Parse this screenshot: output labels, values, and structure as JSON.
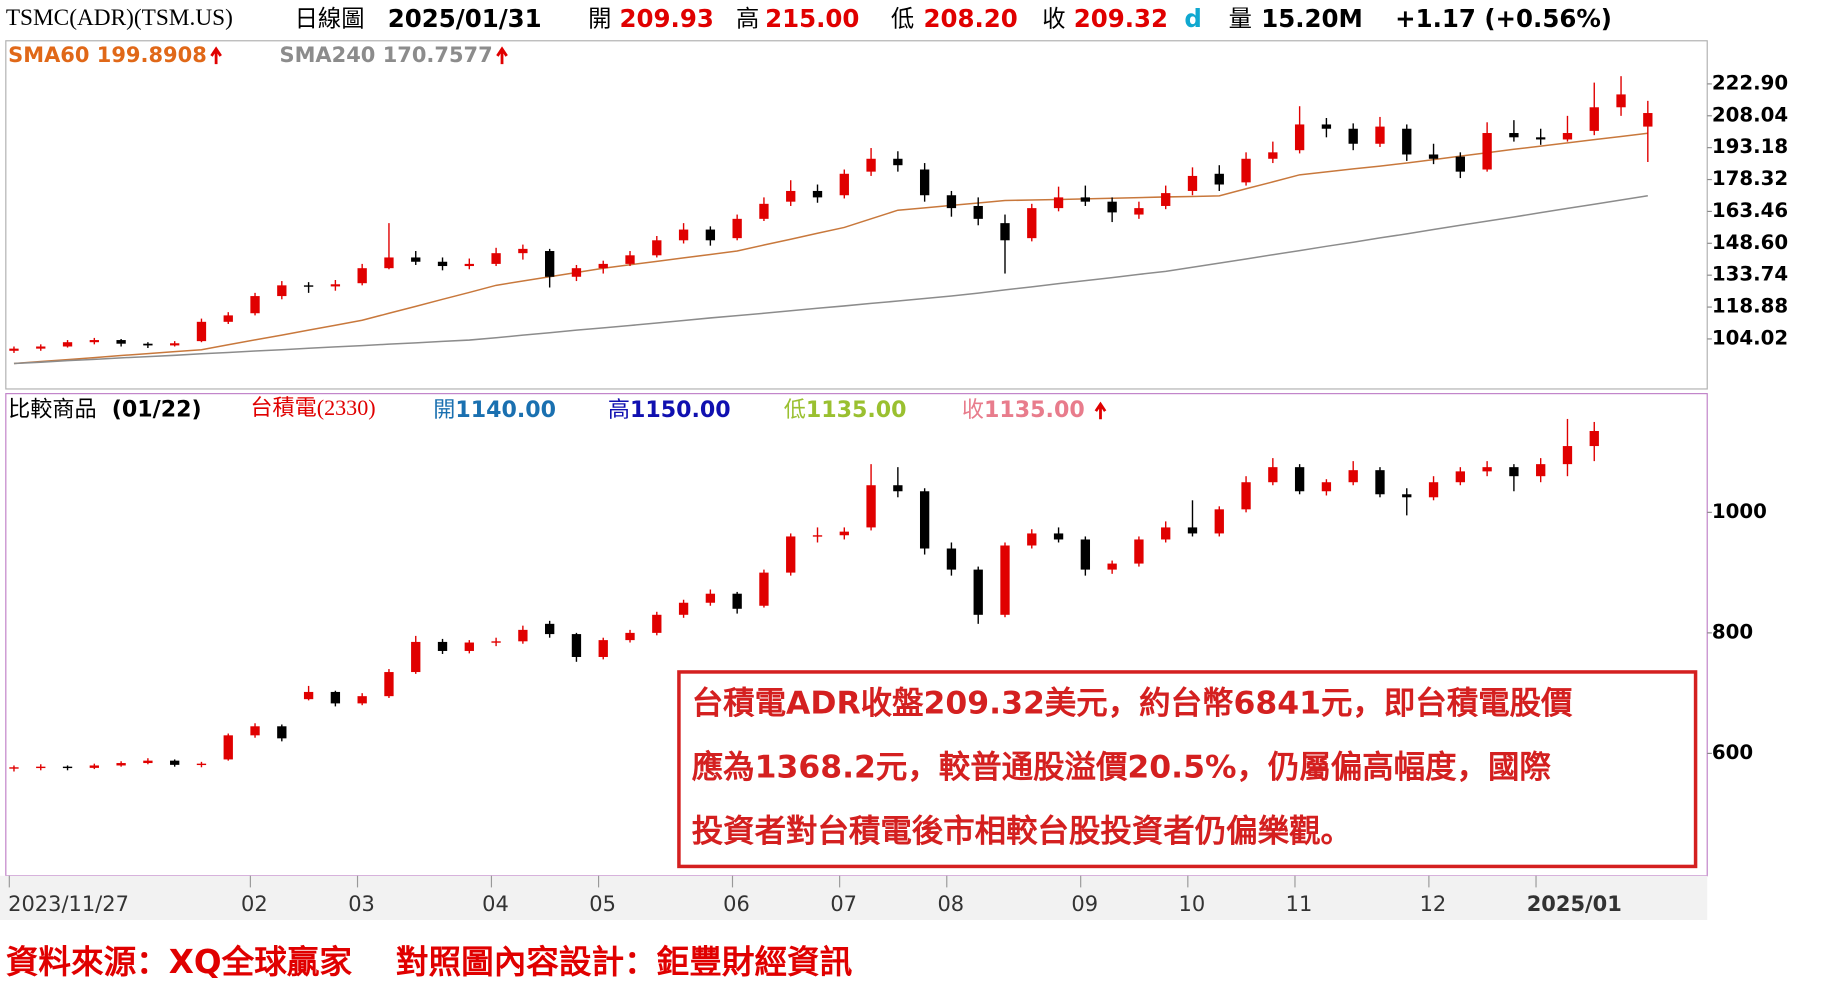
{
  "chart_data": [
    {
      "type": "candlestick",
      "quote": {
        "symbol": "TSMC(ADR)(TSM.US)",
        "period": "日線圖",
        "date": "2025/01/31",
        "open_label": "開",
        "open": "209.93",
        "high_label": "高",
        "high": "215.00",
        "low_label": "低",
        "low": "208.20",
        "close_label": "收",
        "close": "209.32",
        "flag": "d",
        "volume_label": "量",
        "volume": "15.20M",
        "change": "+1.17 (+0.56%)"
      },
      "up_color": "#e00000",
      "down_color": "#000000",
      "open": [
        98.5,
        99.5,
        100.5,
        102.5,
        103.5,
        101.8,
        101.0,
        103.0,
        112.0,
        116.0,
        124.0,
        129.0,
        128.5,
        130.0,
        137.0,
        142.0,
        140.0,
        138.0,
        139.0,
        144.0,
        145.0,
        133.0,
        137.0,
        139.0,
        143.0,
        150.0,
        155.0,
        151.0,
        160.0,
        168.0,
        173.0,
        171.0,
        182.0,
        188.0,
        183.0,
        171.0,
        166.0,
        158.0,
        151.0,
        165.0,
        170.0,
        168.0,
        162.0,
        166.0,
        173.0,
        181.0,
        177.0,
        188.0,
        192.0,
        204.0,
        202.0,
        195.0,
        202.0,
        190.0,
        189.0,
        183.0,
        200.0,
        198.0,
        197.0,
        201.0,
        212.0,
        203.0
      ],
      "high": [
        100.5,
        101.5,
        103.5,
        104.5,
        104.0,
        102.5,
        103.0,
        113.5,
        116.5,
        125.5,
        131.0,
        130.5,
        131.5,
        139.0,
        158.0,
        145.0,
        142.0,
        141.5,
        146.5,
        148.0,
        146.0,
        138.5,
        140.5,
        145.0,
        152.0,
        158.0,
        156.5,
        162.0,
        170.0,
        178.0,
        176.0,
        183.0,
        193.0,
        191.5,
        186.0,
        173.0,
        170.0,
        162.0,
        167.0,
        175.0,
        175.5,
        170.0,
        168.0,
        175.5,
        184.0,
        185.0,
        191.0,
        196.0,
        212.5,
        207.0,
        204.5,
        207.5,
        204.0,
        195.0,
        191.0,
        205.0,
        206.0,
        202.0,
        208.0,
        223.5,
        226.5,
        215.0
      ],
      "low": [
        97.5,
        98.5,
        100.0,
        101.5,
        100.5,
        99.8,
        100.5,
        102.5,
        111.0,
        115.0,
        122.5,
        125.5,
        126.5,
        129.0,
        136.5,
        138.5,
        136.0,
        136.5,
        138.0,
        141.0,
        128.0,
        131.0,
        134.5,
        138.0,
        142.0,
        148.5,
        147.5,
        150.0,
        159.0,
        166.0,
        167.5,
        169.5,
        180.0,
        182.0,
        168.0,
        161.0,
        157.0,
        134.5,
        149.5,
        163.5,
        166.0,
        158.5,
        160.0,
        164.5,
        171.0,
        173.0,
        175.5,
        186.0,
        190.5,
        198.0,
        192.0,
        193.5,
        187.0,
        185.5,
        179.0,
        182.0,
        196.0,
        194.5,
        196.0,
        199.0,
        208.0,
        186.5
      ],
      "close": [
        99.5,
        100.5,
        102.5,
        103.5,
        101.8,
        101.0,
        102.0,
        112.0,
        115.0,
        124.0,
        129.0,
        128.5,
        129.5,
        137.0,
        142.0,
        140.0,
        138.0,
        139.0,
        144.0,
        146.0,
        133.0,
        137.0,
        139.0,
        143.0,
        150.0,
        155.0,
        150.0,
        160.0,
        167.0,
        173.0,
        170.0,
        181.0,
        188.0,
        185.0,
        171.0,
        165.0,
        160.0,
        150.0,
        165.0,
        170.0,
        168.0,
        163.0,
        165.0,
        172.0,
        180.0,
        176.0,
        188.0,
        191.0,
        204.0,
        202.0,
        195.0,
        203.0,
        190.0,
        188.0,
        182.0,
        200.0,
        198.0,
        197.0,
        200.0,
        212.0,
        218.0,
        209.32
      ],
      "lines": [
        {
          "name": "SMA60",
          "color": "#c8783c",
          "label_color": "#e06818",
          "values": [
            92.6,
            93.5,
            94.4,
            95.3,
            96.3,
            97.2,
            98.1,
            99.0,
            101.3,
            103.6,
            105.8,
            108.1,
            110.4,
            112.7,
            116.0,
            119.2,
            122.5,
            125.7,
            129.0,
            131.0,
            133.0,
            135.0,
            137.0,
            138.6,
            140.2,
            141.8,
            143.4,
            145.0,
            147.8,
            150.5,
            153.3,
            156.0,
            160.0,
            164.0,
            165.1,
            166.3,
            167.4,
            168.5,
            168.8,
            169.0,
            169.3,
            169.6,
            169.9,
            170.2,
            170.4,
            170.7,
            174.0,
            177.2,
            180.5,
            181.9,
            183.3,
            184.6,
            186.0,
            187.6,
            189.2,
            190.8,
            192.4,
            193.9,
            195.4,
            196.9,
            198.4,
            199.8908
          ]
        },
        {
          "name": "SMA240",
          "color": "#8c8c8c",
          "label_color": "#8c8c8c",
          "values": [
            92.6,
            93.2,
            93.9,
            94.5,
            95.2,
            95.8,
            96.4,
            97.1,
            97.7,
            98.4,
            99.0,
            99.7,
            100.3,
            100.9,
            101.6,
            102.2,
            102.9,
            103.5,
            104.6,
            105.8,
            106.9,
            108.1,
            109.2,
            110.3,
            111.5,
            112.6,
            113.8,
            114.9,
            116.0,
            117.2,
            118.3,
            119.4,
            120.6,
            121.7,
            122.9,
            124.0,
            125.4,
            126.9,
            128.3,
            129.8,
            131.2,
            132.6,
            134.1,
            135.5,
            137.4,
            139.4,
            141.3,
            143.3,
            145.2,
            147.2,
            149.1,
            151.1,
            153.0,
            155.0,
            157.0,
            158.9,
            160.9,
            162.9,
            164.9,
            166.8,
            168.8,
            170.7577
          ]
        }
      ],
      "ylim": [
        80.7,
        243.0
      ],
      "yticks": [
        104.02,
        118.88,
        133.74,
        {
          "value": 148.6,
          "label": "148.60"
        },
        163.46,
        178.32,
        193.18,
        208.04,
        {
          "value": 222.9,
          "label": "222.90"
        }
      ]
    },
    {
      "type": "candlestick",
      "quote": {
        "title": "比較商品",
        "date": "(01/22)",
        "name": "台積電(2330)",
        "open_label": "開",
        "open": "1140.00",
        "open_color": "#1a70b0",
        "high_label": "高",
        "high": "1150.00",
        "high_color": "#1010b0",
        "low_label": "低",
        "low": "1135.00",
        "low_color": "#9ac030",
        "close_label": "收",
        "close": "1135.00",
        "close_color": "#e87c8c"
      },
      "up_color": "#e00000",
      "down_color": "#000000",
      "categories": [
        "2023/11/27",
        null,
        null,
        null,
        null,
        null,
        null,
        null,
        null,
        "02",
        null,
        null,
        null,
        "03",
        null,
        null,
        null,
        null,
        "04",
        null,
        null,
        null,
        "05",
        null,
        null,
        null,
        null,
        "06",
        null,
        null,
        null,
        "07",
        null,
        null,
        null,
        "08",
        null,
        null,
        null,
        null,
        "09",
        null,
        null,
        null,
        "10",
        null,
        null,
        null,
        "11",
        null,
        null,
        null,
        null,
        "12",
        null,
        null,
        null,
        "2025/01",
        null,
        null,
        null,
        null
      ],
      "open": [
        575,
        577,
        578,
        576,
        580,
        584,
        588,
        581,
        590,
        630,
        645,
        690,
        702,
        683,
        695,
        735,
        785,
        770,
        784,
        786,
        815,
        798,
        760,
        788,
        800,
        830,
        850,
        865,
        845,
        900,
        960,
        962,
        975,
        1045,
        1035,
        940,
        905,
        830,
        945,
        965,
        955,
        905,
        915,
        955,
        975,
        965,
        1005,
        1050,
        1075,
        1035,
        1050,
        1070,
        1030,
        1025,
        1050,
        1068,
        1075,
        1060,
        1080,
        1110,
        null,
        null
      ],
      "high": [
        580,
        582,
        580,
        583,
        587,
        592,
        590,
        586,
        633,
        650,
        648,
        712,
        704,
        700,
        740,
        795,
        790,
        788,
        792,
        812,
        820,
        800,
        792,
        805,
        835,
        855,
        872,
        868,
        905,
        965,
        975,
        975,
        1080,
        1075,
        1040,
        950,
        910,
        950,
        972,
        975,
        960,
        920,
        960,
        985,
        1020,
        1010,
        1060,
        1090,
        1080,
        1055,
        1085,
        1075,
        1040,
        1060,
        1075,
        1085,
        1080,
        1090,
        1155,
        1150,
        null,
        null
      ],
      "low": [
        570,
        572,
        572,
        574,
        578,
        582,
        578,
        577,
        588,
        626,
        620,
        688,
        678,
        680,
        692,
        732,
        765,
        766,
        778,
        782,
        792,
        752,
        756,
        784,
        796,
        825,
        845,
        832,
        842,
        895,
        950,
        955,
        970,
        1025,
        930,
        895,
        815,
        826,
        940,
        950,
        895,
        898,
        910,
        950,
        960,
        960,
        1000,
        1045,
        1030,
        1028,
        1045,
        1025,
        995,
        1020,
        1045,
        1060,
        1035,
        1050,
        1060,
        1085,
        null,
        null
      ],
      "close": [
        577,
        578,
        576,
        580,
        584,
        588,
        581,
        583,
        630,
        645,
        625,
        702,
        683,
        695,
        735,
        785,
        770,
        784,
        786,
        805,
        798,
        760,
        788,
        800,
        830,
        850,
        865,
        840,
        900,
        960,
        962,
        968,
        1045,
        1035,
        940,
        905,
        830,
        945,
        965,
        955,
        905,
        915,
        955,
        975,
        965,
        1005,
        1050,
        1075,
        1035,
        1050,
        1070,
        1030,
        1025,
        1050,
        1068,
        1075,
        1060,
        1080,
        1110,
        1135,
        null,
        null
      ],
      "ylim": [
        397,
        1197
      ],
      "yticks": [
        600,
        800,
        1000
      ]
    }
  ],
  "annotation": [
    "台積電ADR收盤209.32美元，約台幣6841元，即台積電股價",
    "應為1368.2元，較普通股溢價20.5%，仍屬偏高幅度，國際",
    "投資者對台積電後市相較台股投資者仍偏樂觀。"
  ],
  "footer": "資料來源：XQ全球贏家　 對照圖內容設計：鉅豐財經資訊"
}
